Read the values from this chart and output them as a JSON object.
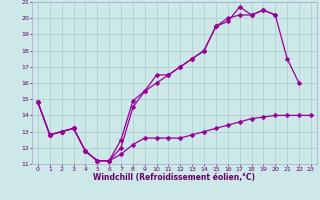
{
  "xlabel": "Windchill (Refroidissement éolien,°C)",
  "background_color": "#cce8e8",
  "grid_color": "#aacccc",
  "line_color": "#990099",
  "xlim": [
    -0.5,
    23.5
  ],
  "ylim": [
    11,
    21
  ],
  "yticks": [
    11,
    12,
    13,
    14,
    15,
    16,
    17,
    18,
    19,
    20,
    21
  ],
  "xticks": [
    0,
    1,
    2,
    3,
    4,
    5,
    6,
    7,
    8,
    9,
    10,
    11,
    12,
    13,
    14,
    15,
    16,
    17,
    18,
    19,
    20,
    21,
    22,
    23
  ],
  "line1_x": [
    0,
    1,
    2,
    3,
    4,
    5,
    6,
    7,
    8,
    9,
    10,
    11,
    12,
    13,
    14,
    15,
    16,
    17,
    18,
    19,
    20,
    21,
    22,
    23
  ],
  "line1_y": [
    14.8,
    12.8,
    13.0,
    13.2,
    11.8,
    11.2,
    11.2,
    11.6,
    12.2,
    12.6,
    12.6,
    12.6,
    12.6,
    12.8,
    13.0,
    13.2,
    13.4,
    13.6,
    13.8,
    13.9,
    14.0,
    14.0,
    14.0,
    14.0
  ],
  "line2_x": [
    0,
    1,
    2,
    3,
    4,
    5,
    6,
    7,
    8,
    9,
    10,
    11,
    12,
    13,
    14,
    15,
    16,
    17,
    18,
    19,
    20,
    21,
    22
  ],
  "line2_y": [
    14.8,
    12.8,
    13.0,
    13.2,
    11.8,
    11.2,
    11.2,
    12.5,
    14.9,
    15.5,
    16.5,
    16.5,
    17.0,
    17.5,
    18.0,
    19.5,
    19.8,
    20.7,
    20.2,
    20.5,
    20.2,
    17.5,
    16.0
  ],
  "line3_x": [
    0,
    1,
    2,
    3,
    4,
    5,
    6,
    7,
    8,
    9,
    10,
    11,
    12,
    13,
    14,
    15,
    16,
    17,
    18,
    19,
    20
  ],
  "line3_y": [
    14.8,
    12.8,
    13.0,
    13.2,
    11.8,
    11.2,
    11.2,
    12.0,
    14.5,
    15.5,
    16.0,
    16.5,
    17.0,
    17.5,
    18.0,
    19.5,
    20.0,
    20.2,
    20.2,
    20.5,
    20.2
  ]
}
